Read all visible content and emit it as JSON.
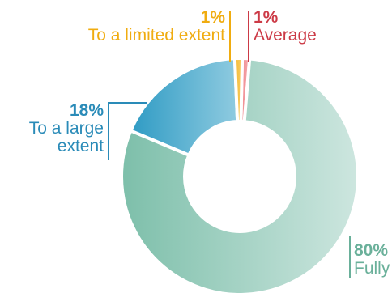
{
  "chart_data": {
    "type": "pie",
    "title": "",
    "slices": [
      {
        "label": "Fully",
        "value": 80,
        "value_label": "80%",
        "color": "#8fc5b4"
      },
      {
        "label": "To a large extent",
        "value": 18,
        "value_label": "18%",
        "color": "#3a9fc6"
      },
      {
        "label": "To a limited extent",
        "value": 1,
        "value_label": "1%",
        "color": "#f5b82e"
      },
      {
        "label": "Average",
        "value": 1,
        "value_label": "1%",
        "color": "#e46d73"
      }
    ],
    "donut": true,
    "legend": "none"
  },
  "labels": {
    "fully": {
      "pct": "80%",
      "text": "Fully",
      "color": "#6ab09a"
    },
    "large": {
      "pct": "18%",
      "line1": "To a large",
      "line2": "extent",
      "color": "#2a8bb8"
    },
    "limited": {
      "pct": "1%",
      "text": "To a limited extent",
      "color": "#f0ac10"
    },
    "average": {
      "pct": "1%",
      "text": "Average",
      "color": "#cc3a46"
    }
  }
}
